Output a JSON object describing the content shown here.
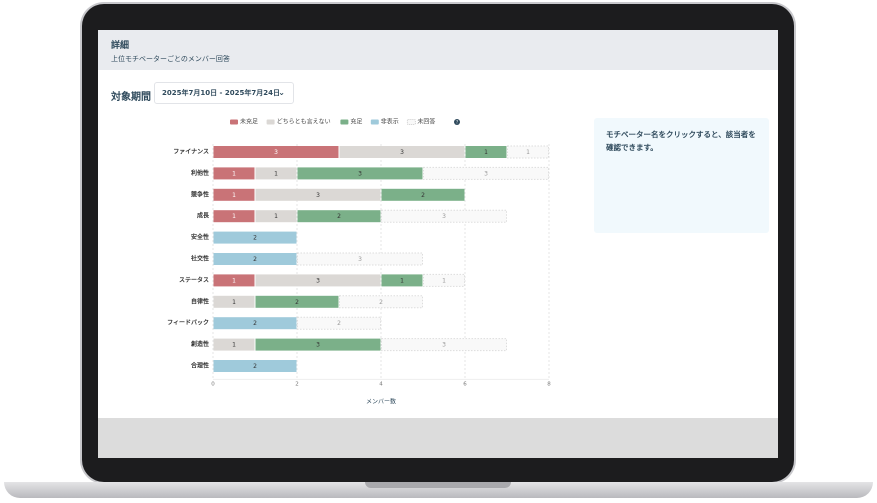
{
  "header": {
    "title": "詳細",
    "subtitle": "上位モチベーターごとのメンバー回答"
  },
  "period": {
    "label": "対象期間",
    "value": "2025年7月10日 - 2025年7月24日",
    "chevron_icon": "chevron-down-icon"
  },
  "info": {
    "text": "モチベーター名をクリックすると、該当者を確認できます。"
  },
  "chart_data": {
    "type": "bar",
    "orientation": "horizontal-stacked",
    "categories": [
      "ファイナンス",
      "利他性",
      "競争性",
      "成長",
      "安全性",
      "社交性",
      "ステータス",
      "自律性",
      "フィードバック",
      "創造性",
      "合理性"
    ],
    "series": [
      {
        "name": "未充足",
        "color": "#c97377",
        "values": [
          3,
          1,
          1,
          1,
          0,
          0,
          1,
          0,
          0,
          0,
          0
        ]
      },
      {
        "name": "どちらとも言えない",
        "color": "#dbd8d5",
        "values": [
          3,
          1,
          3,
          1,
          0,
          0,
          3,
          1,
          0,
          1,
          0
        ]
      },
      {
        "name": "充足",
        "color": "#7bb089",
        "values": [
          1,
          3,
          2,
          2,
          0,
          0,
          1,
          2,
          0,
          3,
          0
        ]
      },
      {
        "name": "非表示",
        "color": "#9fcadb",
        "values": [
          0,
          0,
          0,
          0,
          2,
          2,
          0,
          0,
          2,
          0,
          2
        ]
      },
      {
        "name": "未回答",
        "color": "#f9f9f9",
        "values": [
          1,
          3,
          0,
          3,
          0,
          3,
          1,
          2,
          2,
          3,
          0
        ]
      }
    ],
    "xlabel": "メンバー数",
    "xlim": [
      0,
      8
    ],
    "xticks": [
      "0",
      "2",
      "4",
      "6",
      "8"
    ],
    "grid": true,
    "legend": "top",
    "help_icon": "help-icon"
  }
}
